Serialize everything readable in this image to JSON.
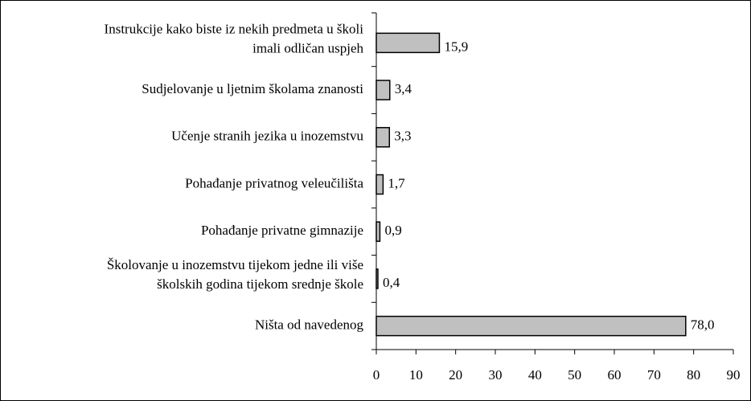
{
  "chart_data": {
    "type": "barh",
    "categories": [
      [
        "Instrukcije kako biste iz nekih predmeta u školi",
        "imali odličan uspjeh"
      ],
      [
        "Sudjelovanje u ljetnim školama znanosti"
      ],
      [
        "Učenje stranih jezika u inozemstvu"
      ],
      [
        "Pohađanje privatnog veleučilišta"
      ],
      [
        "Pohađanje privatne gimnazije"
      ],
      [
        "Školovanje u inozemstvu tijekom jedne ili više",
        "školskih godina tijekom srednje škole"
      ],
      [
        "Ništa od navedenog"
      ]
    ],
    "values": [
      15.9,
      3.4,
      3.3,
      1.7,
      0.9,
      0.4,
      78.0
    ],
    "value_labels": [
      "15,9",
      "3,4",
      "3,3",
      "1,7",
      "0,9",
      "0,4",
      "78,0"
    ],
    "color": "#c0c0c0",
    "xlim": [
      0,
      90
    ],
    "xticks": [
      0,
      10,
      20,
      30,
      40,
      50,
      60,
      70,
      80,
      90
    ],
    "grid": false
  }
}
